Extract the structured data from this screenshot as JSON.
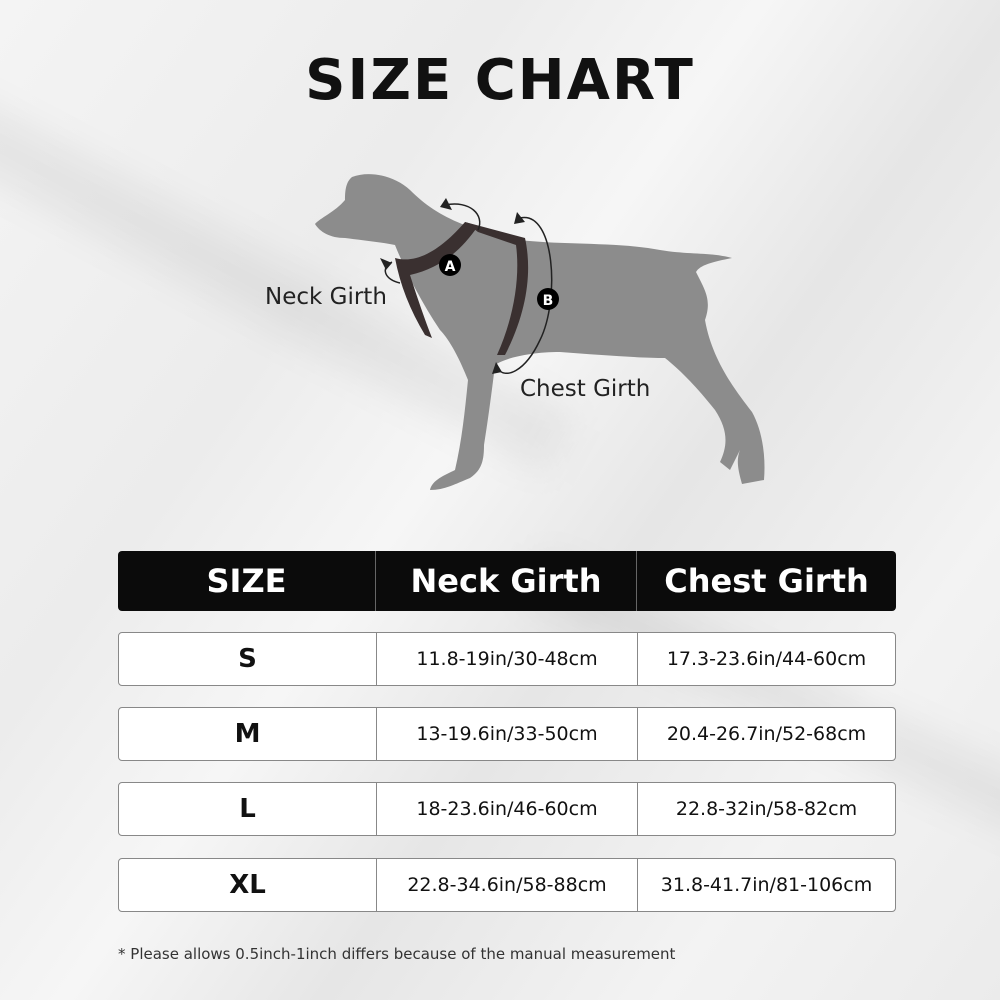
{
  "title": "SIZE CHART",
  "diagram": {
    "neck_label": "Neck Girth",
    "chest_label": "Chest Girth",
    "marker_a": "A",
    "marker_b": "B"
  },
  "table": {
    "headers": [
      "SIZE",
      "Neck Girth",
      "Chest Girth"
    ],
    "rows": [
      {
        "size": "S",
        "neck": "11.8-19in/30-48cm",
        "chest": "17.3-23.6in/44-60cm"
      },
      {
        "size": "M",
        "neck": "13-19.6in/33-50cm",
        "chest": "20.4-26.7in/52-68cm"
      },
      {
        "size": "L",
        "neck": "18-23.6in/46-60cm",
        "chest": "22.8-32in/58-82cm"
      },
      {
        "size": "XL",
        "neck": "22.8-34.6in/58-88cm",
        "chest": "31.8-41.7in/81-106cm"
      }
    ]
  },
  "note": "* Please allows 0.5inch-1inch differs because of the  manual measurement",
  "colors": {
    "header_bg": "#0b0b0b",
    "dog": "#8c8c8c",
    "harness": "#3a3030"
  }
}
